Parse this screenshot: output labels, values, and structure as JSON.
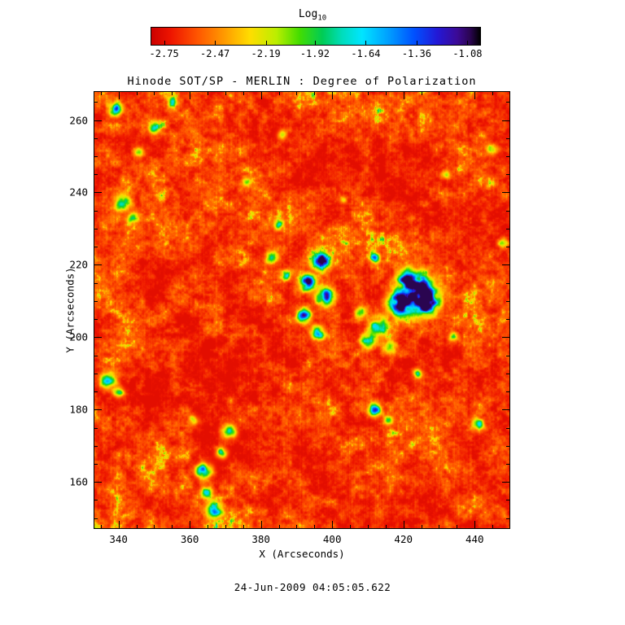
{
  "caption": "24-Jun-2009 04:05:05.622",
  "colorbar": {
    "label_main": "Log",
    "label_sub": "10",
    "tick_labels": [
      "-2.75",
      "-2.47",
      "-2.19",
      "-1.92",
      "-1.64",
      "-1.36",
      "-1.08"
    ],
    "stops": [
      [
        0.0,
        "#cc0000"
      ],
      [
        0.06,
        "#ee1500"
      ],
      [
        0.14,
        "#ff5500"
      ],
      [
        0.22,
        "#ff9900"
      ],
      [
        0.3,
        "#ffdd00"
      ],
      [
        0.38,
        "#bbee00"
      ],
      [
        0.45,
        "#44dd00"
      ],
      [
        0.52,
        "#00cc55"
      ],
      [
        0.58,
        "#00ddbb"
      ],
      [
        0.64,
        "#00e5ff"
      ],
      [
        0.72,
        "#00a0ff"
      ],
      [
        0.8,
        "#0050ff"
      ],
      [
        0.87,
        "#2318d6"
      ],
      [
        0.93,
        "#3c0a96"
      ],
      [
        0.97,
        "#2a0550"
      ],
      [
        1.0,
        "#000000"
      ]
    ]
  },
  "chart_data": {
    "type": "heatmap",
    "title": "Hinode SOT/SP - MERLIN : Degree of Polarization",
    "xlabel": "X (Arcseconds)",
    "ylabel": "Y (Arcseconds)",
    "value_label": "Log10 Degree of Polarization",
    "xlim": [
      333,
      450
    ],
    "ylim": [
      147,
      268
    ],
    "xticks": [
      340,
      360,
      380,
      400,
      420,
      440
    ],
    "yticks": [
      160,
      180,
      200,
      220,
      240,
      260
    ],
    "x_minor_step": 5,
    "y_minor_step": 5,
    "grid": false,
    "legend": "colorbar-top",
    "colorbar_range": [
      -2.82,
      -1.01
    ],
    "colorbar_ticks": [
      -2.75,
      -2.47,
      -2.19,
      -1.92,
      -1.64,
      -1.36,
      -1.08
    ],
    "background_level_log10": -2.55,
    "seed": 20090624,
    "features_format": [
      "x_arcsec",
      "y_arcsec",
      "radius_arcsec",
      "amplitude"
    ],
    "features": [
      [
        424,
        212,
        4.5,
        1.05
      ],
      [
        419,
        209,
        3.0,
        0.85
      ],
      [
        427,
        209,
        2.5,
        0.8
      ],
      [
        421,
        216,
        2.5,
        0.6
      ],
      [
        413,
        203,
        2.5,
        0.55
      ],
      [
        410,
        199,
        2.0,
        0.5
      ],
      [
        416,
        197,
        1.8,
        0.45
      ],
      [
        408,
        207,
        1.6,
        0.4
      ],
      [
        397,
        221,
        2.2,
        0.8
      ],
      [
        393,
        215,
        2.0,
        0.9
      ],
      [
        398,
        211,
        2.2,
        0.95
      ],
      [
        392,
        206,
        1.8,
        0.7
      ],
      [
        396,
        201,
        1.8,
        0.6
      ],
      [
        383,
        222,
        1.5,
        0.5
      ],
      [
        387,
        217,
        1.3,
        0.45
      ],
      [
        412,
        222,
        1.4,
        0.55
      ],
      [
        341,
        237,
        2.0,
        0.6
      ],
      [
        344,
        233,
        1.5,
        0.5
      ],
      [
        337,
        188,
        2.0,
        0.65
      ],
      [
        340,
        185,
        1.4,
        0.5
      ],
      [
        367,
        152,
        2.0,
        0.7
      ],
      [
        365,
        157,
        1.5,
        0.55
      ],
      [
        364,
        163,
        2.0,
        0.8
      ],
      [
        369,
        168,
        1.4,
        0.5
      ],
      [
        371,
        174,
        1.8,
        0.65
      ],
      [
        361,
        177,
        1.3,
        0.4
      ],
      [
        350,
        258,
        1.5,
        0.5
      ],
      [
        339,
        263,
        1.8,
        0.55
      ],
      [
        346,
        251,
        1.3,
        0.4
      ],
      [
        355,
        265,
        1.3,
        0.45
      ],
      [
        385,
        231,
        1.4,
        0.45
      ],
      [
        412,
        180,
        1.8,
        0.6
      ],
      [
        416,
        177,
        1.3,
        0.45
      ],
      [
        424,
        190,
        1.2,
        0.4
      ],
      [
        441,
        176,
        1.5,
        0.5
      ],
      [
        434,
        200,
        1.3,
        0.35
      ],
      [
        448,
        226,
        1.2,
        0.35
      ],
      [
        445,
        252,
        1.3,
        0.4
      ],
      [
        432,
        245,
        1.2,
        0.35
      ],
      [
        386,
        256,
        1.3,
        0.35
      ],
      [
        376,
        243,
        1.2,
        0.35
      ],
      [
        403,
        238,
        1.1,
        0.3
      ]
    ]
  }
}
